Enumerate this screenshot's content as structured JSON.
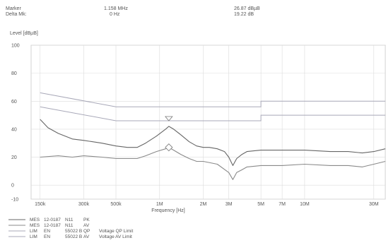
{
  "header": {
    "marker_label": "Marker",
    "delta_label": "Delta Mk:",
    "marker_freq": "1.158 MHz",
    "delta_freq": "0 Hz",
    "marker_level": "26.87 dBµB",
    "delta_level": "19.22 dB"
  },
  "chart_data": {
    "type": "line",
    "title": "",
    "ylabel": "Level [dBµB]",
    "xlabel": "Frequency [Hz]",
    "x_scale": "log",
    "xlim_hz": [
      130000,
      36000000
    ],
    "ylim": [
      -10,
      100
    ],
    "y_ticks": [
      100,
      80,
      60,
      40,
      20,
      0,
      -10
    ],
    "x_ticks": [
      {
        "hz": 150000,
        "label": "150k"
      },
      {
        "hz": 300000,
        "label": "300k"
      },
      {
        "hz": 500000,
        "label": "500k"
      },
      {
        "hz": 1000000,
        "label": "1M"
      },
      {
        "hz": 2000000,
        "label": "2M"
      },
      {
        "hz": 3000000,
        "label": "3M"
      },
      {
        "hz": 5000000,
        "label": "5M"
      },
      {
        "hz": 7000000,
        "label": "7M"
      },
      {
        "hz": 10000000,
        "label": "10M"
      },
      {
        "hz": 30000000,
        "label": "30M"
      }
    ],
    "grid": true,
    "limits": [
      {
        "name": "QP",
        "color": "#a8a8b8",
        "points": [
          [
            150000,
            66
          ],
          [
            500000,
            56
          ],
          [
            5000000,
            56
          ],
          [
            5000000,
            60
          ],
          [
            36000000,
            60
          ]
        ]
      },
      {
        "name": "AV",
        "color": "#a8a8b8",
        "points": [
          [
            150000,
            56
          ],
          [
            500000,
            46
          ],
          [
            5000000,
            46
          ],
          [
            5000000,
            50
          ],
          [
            36000000,
            50
          ]
        ]
      }
    ],
    "series": [
      {
        "name": "PK",
        "color": "#666666",
        "points": [
          [
            150000,
            47
          ],
          [
            170000,
            41
          ],
          [
            200000,
            37
          ],
          [
            250000,
            33
          ],
          [
            300000,
            32
          ],
          [
            400000,
            30
          ],
          [
            500000,
            28
          ],
          [
            600000,
            27
          ],
          [
            700000,
            27
          ],
          [
            800000,
            30
          ],
          [
            950000,
            35
          ],
          [
            1100000,
            40
          ],
          [
            1158000,
            42
          ],
          [
            1250000,
            40
          ],
          [
            1400000,
            36
          ],
          [
            1600000,
            31
          ],
          [
            1800000,
            28
          ],
          [
            2000000,
            27
          ],
          [
            2200000,
            27
          ],
          [
            2500000,
            26
          ],
          [
            2800000,
            24
          ],
          [
            3000000,
            20
          ],
          [
            3200000,
            14
          ],
          [
            3400000,
            19
          ],
          [
            3700000,
            22
          ],
          [
            4000000,
            24
          ],
          [
            5000000,
            25
          ],
          [
            7000000,
            25
          ],
          [
            10000000,
            25
          ],
          [
            15000000,
            24
          ],
          [
            20000000,
            24
          ],
          [
            25000000,
            23
          ],
          [
            30000000,
            24
          ],
          [
            36000000,
            26
          ]
        ]
      },
      {
        "name": "AV",
        "color": "#8a8a8a",
        "points": [
          [
            150000,
            20
          ],
          [
            200000,
            21
          ],
          [
            250000,
            20
          ],
          [
            300000,
            21
          ],
          [
            400000,
            20
          ],
          [
            500000,
            19
          ],
          [
            600000,
            19
          ],
          [
            700000,
            19
          ],
          [
            800000,
            21
          ],
          [
            950000,
            24
          ],
          [
            1100000,
            26
          ],
          [
            1158000,
            27
          ],
          [
            1250000,
            25
          ],
          [
            1400000,
            22
          ],
          [
            1600000,
            19
          ],
          [
            1800000,
            17
          ],
          [
            2000000,
            17
          ],
          [
            2500000,
            15
          ],
          [
            3000000,
            9
          ],
          [
            3200000,
            4
          ],
          [
            3400000,
            9
          ],
          [
            3700000,
            11
          ],
          [
            4000000,
            13
          ],
          [
            5000000,
            14
          ],
          [
            7000000,
            14
          ],
          [
            10000000,
            15
          ],
          [
            15000000,
            14
          ],
          [
            20000000,
            14
          ],
          [
            25000000,
            13
          ],
          [
            30000000,
            15
          ],
          [
            36000000,
            17
          ]
        ]
      }
    ],
    "markers": [
      {
        "type": "triangle",
        "hz": 1158000,
        "value": 46
      },
      {
        "type": "diamond",
        "hz": 1158000,
        "value": 27
      }
    ]
  },
  "legend": [
    {
      "prefix": "MES",
      "code": "12-0187",
      "node": "N11",
      "tag": "PK",
      "desc": "",
      "color": "#666666"
    },
    {
      "prefix": "MES",
      "code": "12-0187",
      "node": "N11",
      "tag": "AV",
      "desc": "",
      "color": "#8a8a8a"
    },
    {
      "prefix": "LIM",
      "code": "EN",
      "node": "55022 B",
      "tag": "QP",
      "desc": "Voltage QP Limit",
      "color": "#a8a8b8"
    },
    {
      "prefix": "LIM",
      "code": "EN",
      "node": "55022 B",
      "tag": "AV",
      "desc": "Voltage AV Limit",
      "color": "#a8a8b8"
    }
  ]
}
